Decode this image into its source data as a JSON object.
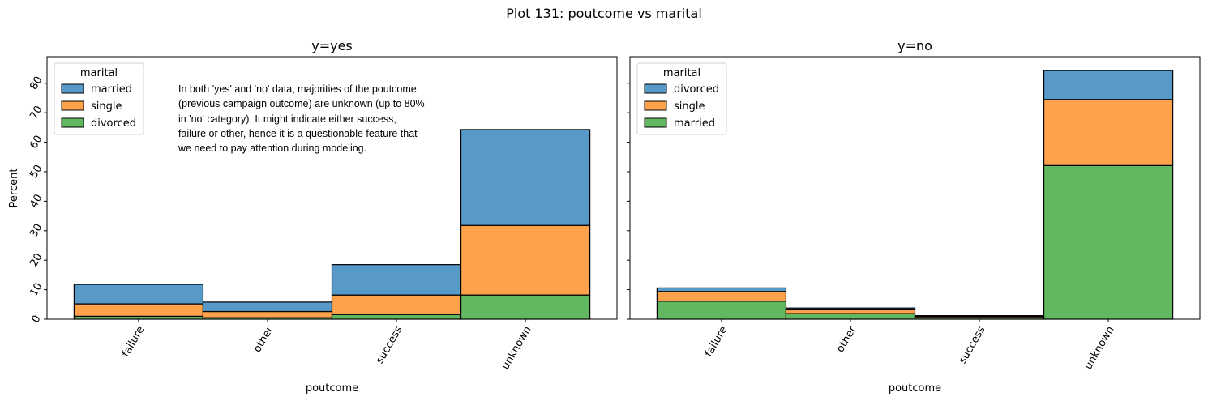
{
  "figure": {
    "suptitle": "Plot 131: poutcome vs marital",
    "annotation": "In both 'yes' and 'no' data, majorities of the poutcome\n(previous campaign outcome) are unknown (up to 80%\nin 'no' category). It might indicate either success,\nfailure or other, hence it is a questionable feature that\nwe need to pay attention during modeling."
  },
  "colors": {
    "blue": "#5799c7",
    "orange": "#ffa24b",
    "green": "#62b861",
    "edge": "#000000"
  },
  "chart_data": [
    {
      "type": "bar",
      "stacked": true,
      "title": "y=yes",
      "xlabel": "poutcome",
      "ylabel": "Percent",
      "categories": [
        "failure",
        "other",
        "success",
        "unknown"
      ],
      "ylim": [
        0,
        89
      ],
      "yticks": [
        0,
        10,
        20,
        30,
        40,
        50,
        60,
        70,
        80
      ],
      "show_ytick_labels": true,
      "legend": {
        "title": "marital",
        "position": "top-left",
        "labels": [
          "married",
          "single",
          "divorced"
        ]
      },
      "series": [
        {
          "name": "divorced",
          "color": "green",
          "values": [
            1.0,
            0.5,
            1.6,
            8.2
          ]
        },
        {
          "name": "single",
          "color": "orange",
          "values": [
            4.2,
            2.1,
            6.6,
            23.6
          ]
        },
        {
          "name": "married",
          "color": "blue",
          "values": [
            6.6,
            3.2,
            10.3,
            32.5
          ]
        }
      ]
    },
    {
      "type": "bar",
      "stacked": true,
      "title": "y=no",
      "xlabel": "poutcome",
      "ylabel": "",
      "categories": [
        "failure",
        "other",
        "success",
        "unknown"
      ],
      "ylim": [
        0,
        89
      ],
      "yticks": [
        0,
        10,
        20,
        30,
        40,
        50,
        60,
        70,
        80
      ],
      "show_ytick_labels": false,
      "legend": {
        "title": "marital",
        "position": "top-left",
        "labels": [
          "divorced",
          "single",
          "married"
        ]
      },
      "series": [
        {
          "name": "married",
          "color": "green",
          "values": [
            6.1,
            1.9,
            0.6,
            52.1
          ]
        },
        {
          "name": "single",
          "color": "orange",
          "values": [
            3.3,
            1.3,
            0.4,
            22.4
          ]
        },
        {
          "name": "divorced",
          "color": "blue",
          "values": [
            1.2,
            0.6,
            0.2,
            9.8
          ]
        }
      ]
    }
  ]
}
